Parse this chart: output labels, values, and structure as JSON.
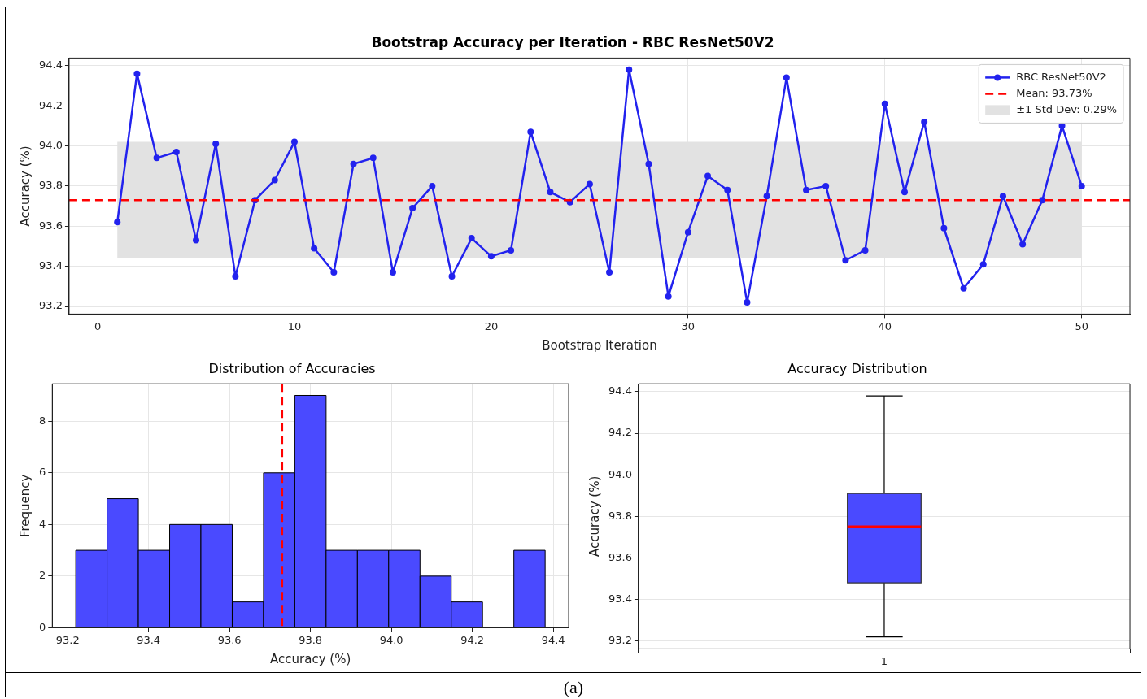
{
  "chart_data": [
    {
      "type": "line",
      "title": "Bootstrap Accuracy per Iteration - RBC ResNet50V2",
      "xlabel": "Bootstrap Iteration",
      "ylabel": "Accuracy (%)",
      "x": [
        1,
        2,
        3,
        4,
        5,
        6,
        7,
        8,
        9,
        10,
        11,
        12,
        13,
        14,
        15,
        16,
        17,
        18,
        19,
        20,
        21,
        22,
        23,
        24,
        25,
        26,
        27,
        28,
        29,
        30,
        31,
        32,
        33,
        34,
        35,
        36,
        37,
        38,
        39,
        40,
        41,
        42,
        43,
        44,
        45,
        46,
        47,
        48,
        49,
        50
      ],
      "series": [
        {
          "name": "RBC ResNet50V2",
          "color": "#2222ee",
          "values": [
            93.62,
            94.36,
            93.94,
            93.97,
            93.53,
            94.01,
            93.35,
            93.73,
            93.83,
            94.02,
            93.49,
            93.37,
            93.91,
            93.94,
            93.37,
            93.69,
            93.8,
            93.35,
            93.54,
            93.45,
            93.48,
            94.07,
            93.77,
            93.72,
            93.81,
            93.37,
            94.38,
            93.91,
            93.25,
            93.57,
            93.85,
            93.78,
            93.22,
            93.75,
            94.34,
            93.78,
            93.8,
            93.43,
            93.48,
            94.21,
            93.77,
            94.12,
            93.59,
            93.29,
            93.41,
            93.75,
            93.51,
            93.73,
            94.1,
            93.8
          ]
        }
      ],
      "ref_lines": [
        {
          "axis": "y",
          "value": 93.73,
          "label": "Mean: 93.73%",
          "color": "#ff0000",
          "line_style": "dashed"
        }
      ],
      "bands": [
        {
          "axis": "y",
          "from": 93.44,
          "to": 94.02,
          "label": "±1 Std Dev: 0.29%",
          "color": "#e2e2e2"
        }
      ],
      "xlim": [
        -1.45,
        52.45
      ],
      "xticks": [
        0,
        10,
        20,
        30,
        40,
        50
      ],
      "ylim": [
        93.162,
        94.438
      ],
      "yticks": [
        93.2,
        93.4,
        93.6,
        93.8,
        {
          "value": 94,
          "label": "94.0"
        },
        94.2,
        94.4
      ],
      "grid": true,
      "legend": "top right",
      "marker": "circle",
      "line_style": "solid",
      "annotations": [
        "(a)"
      ]
    },
    {
      "type": "histogram",
      "title": "Distribution of Accuracies",
      "xlabel": "Accuracy (%)",
      "ylabel": "Frequency",
      "bins": [
        93.22,
        93.2973,
        93.3747,
        93.452,
        93.5293,
        93.6067,
        93.684,
        93.7613,
        93.8387,
        93.916,
        93.9933,
        94.0707,
        94.148,
        94.2253,
        94.3027,
        94.38
      ],
      "values": [
        3,
        5,
        3,
        4,
        4,
        1,
        6,
        9,
        3,
        3,
        3,
        2,
        1,
        0,
        3
      ],
      "color": "#4a4aff",
      "ref_lines": [
        {
          "axis": "x",
          "value": 93.73,
          "color": "#ff0000",
          "line_style": "dashed"
        }
      ],
      "xlim": [
        93.162,
        94.438
      ],
      "xticks": [
        93.2,
        93.4,
        93.6,
        93.8,
        {
          "value": 94,
          "label": "94.0"
        },
        94.2,
        94.4
      ],
      "ylim": [
        0,
        9.45
      ],
      "yticks": [
        0,
        2,
        4,
        6,
        8
      ],
      "grid": true
    },
    {
      "type": "box",
      "title": "Accuracy Distribution",
      "ylabel": "Accuracy (%)",
      "categories": [
        "1"
      ],
      "color": "#4a4aff",
      "boxes": [
        {
          "low": 93.22,
          "q1": 93.48,
          "median": 93.75,
          "q3": 93.91,
          "high": 94.38
        }
      ],
      "ylim": [
        93.162,
        94.438
      ],
      "yticks": [
        93.2,
        93.4,
        93.6,
        93.8,
        {
          "value": 94,
          "label": "94.0"
        },
        94.2,
        94.4
      ],
      "grid": true
    }
  ]
}
